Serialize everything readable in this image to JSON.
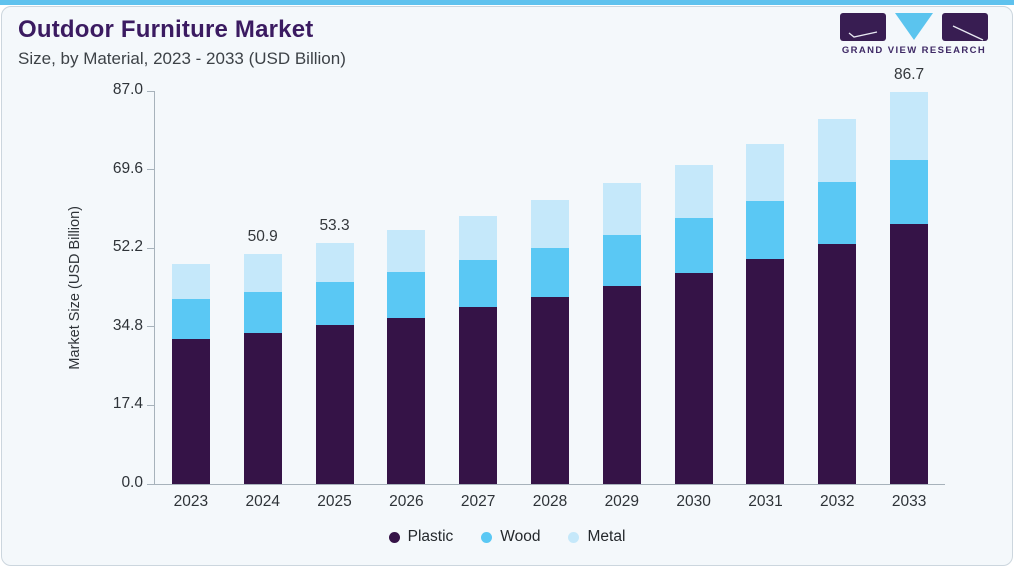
{
  "header": {
    "title": "Outdoor Furniture Market",
    "subtitle": "Size, by Material, 2023 - 2033 (USD Billion)"
  },
  "logo": {
    "brand": "GRAND VIEW RESEARCH"
  },
  "colors": {
    "accent_blue": "#5fc2ee",
    "card_background": "#f4f8fb",
    "title_purple": "#3b1b61",
    "logo_block_purple": "#381d52",
    "logo_triangle_blue": "#5bc4ee",
    "plastic": "#351347",
    "wood": "#5ac8f4",
    "metal": "#c5e8fa"
  },
  "chart_data": {
    "type": "bar",
    "stacked": true,
    "title": "Outdoor Furniture Market Size, by Material, 2023 - 2033 (USD Billion)",
    "categories": [
      "2023",
      "2024",
      "2025",
      "2026",
      "2027",
      "2028",
      "2029",
      "2030",
      "2031",
      "2032",
      "2033"
    ],
    "series": [
      {
        "name": "Plastic",
        "color": "#351347",
        "values": [
          32.0,
          33.5,
          35.2,
          36.8,
          39.1,
          41.4,
          43.8,
          46.8,
          49.9,
          53.1,
          57.6
        ]
      },
      {
        "name": "Wood",
        "color": "#5ac8f4",
        "values": [
          9.0,
          9.0,
          9.5,
          10.1,
          10.4,
          10.8,
          11.3,
          12.0,
          12.8,
          13.8,
          14.2
        ]
      },
      {
        "name": "Metal",
        "color": "#c5e8fa",
        "values": [
          7.7,
          8.4,
          8.6,
          9.3,
          9.9,
          10.7,
          11.5,
          11.9,
          12.6,
          14.0,
          14.9
        ]
      }
    ],
    "totals": [
      48.7,
      50.9,
      53.3,
      56.2,
      59.4,
      62.9,
      66.6,
      70.7,
      75.3,
      80.9,
      86.7
    ],
    "value_labels": {
      "2024": "50.9",
      "2025": "53.3",
      "2033": "86.7"
    },
    "xlabel": "",
    "ylabel": "Market Size (USD Billion)",
    "ylim": [
      0,
      87
    ],
    "yticks": [
      "0.0",
      "17.4",
      "34.8",
      "52.2",
      "69.6",
      "87.0"
    ],
    "grid": false,
    "legend_position": "bottom"
  }
}
